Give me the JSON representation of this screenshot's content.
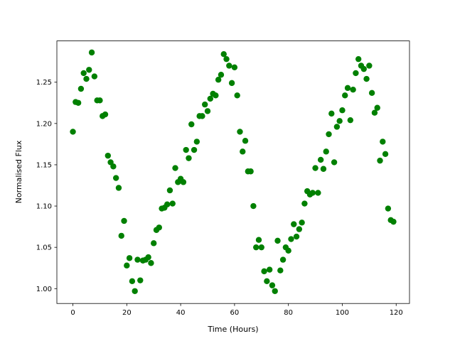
{
  "chart_data": {
    "type": "scatter",
    "xlabel": "Time (Hours)",
    "ylabel": "Normalised Flux",
    "x": [
      0,
      1,
      2,
      3,
      4,
      5,
      6,
      7,
      8,
      9,
      10,
      11,
      12,
      13,
      14,
      15,
      16,
      17,
      18,
      19,
      20,
      21,
      22,
      23,
      24,
      25,
      26,
      27,
      28,
      29,
      30,
      31,
      32,
      33,
      34,
      35,
      36,
      37,
      38,
      39,
      40,
      41,
      42,
      43,
      44,
      45,
      46,
      47,
      48,
      49,
      50,
      51,
      52,
      53,
      54,
      55,
      56,
      57,
      58,
      59,
      60,
      61,
      62,
      63,
      64,
      65,
      66,
      67,
      68,
      69,
      70,
      71,
      72,
      73,
      74,
      75,
      76,
      77,
      78,
      79,
      80,
      81,
      82,
      83,
      84,
      85,
      86,
      87,
      88,
      89,
      90,
      91,
      92,
      93,
      94,
      95,
      96,
      97,
      98,
      99,
      100,
      101,
      102,
      103,
      104,
      105,
      106,
      107,
      108,
      109,
      110,
      111,
      112,
      113,
      114,
      115,
      116,
      117,
      118,
      119
    ],
    "values": [
      1.19,
      1.226,
      1.225,
      1.242,
      1.261,
      1.254,
      1.265,
      1.286,
      1.257,
      1.228,
      1.228,
      1.209,
      1.211,
      1.161,
      1.153,
      1.148,
      1.134,
      1.122,
      1.064,
      1.082,
      1.028,
      1.037,
      1.009,
      0.997,
      1.035,
      1.01,
      1.034,
      1.035,
      1.038,
      1.031,
      1.055,
      1.071,
      1.074,
      1.097,
      1.098,
      1.102,
      1.119,
      1.103,
      1.146,
      1.129,
      1.133,
      1.129,
      1.168,
      1.158,
      1.199,
      1.168,
      1.178,
      1.209,
      1.209,
      1.223,
      1.215,
      1.23,
      1.236,
      1.234,
      1.253,
      1.259,
      1.284,
      1.278,
      1.27,
      1.249,
      1.268,
      1.234,
      1.19,
      1.166,
      1.179,
      1.142,
      1.142,
      1.1,
      1.05,
      1.059,
      1.05,
      1.021,
      1.009,
      1.023,
      1.004,
      0.997,
      1.058,
      1.022,
      1.035,
      1.05,
      1.046,
      1.06,
      1.078,
      1.063,
      1.072,
      1.08,
      1.103,
      1.118,
      1.114,
      1.116,
      1.146,
      1.116,
      1.156,
      1.145,
      1.166,
      1.187,
      1.212,
      1.153,
      1.196,
      1.203,
      1.216,
      1.234,
      1.243,
      1.204,
      1.241,
      1.261,
      1.278,
      1.27,
      1.266,
      1.254,
      1.27,
      1.237,
      1.213,
      1.219,
      1.155,
      1.178,
      1.163,
      1.097,
      1.083,
      1.081
    ],
    "color": "#008000",
    "xlim": [
      -5.95,
      124.95
    ],
    "xticks": [
      0,
      20,
      40,
      60,
      80,
      100,
      120
    ],
    "ylim": [
      0.982,
      1.3
    ],
    "yticks": [
      {
        "value": 1.0,
        "label": "1.00"
      },
      {
        "value": 1.05,
        "label": "1.05"
      },
      {
        "value": 1.1,
        "label": "1.10"
      },
      {
        "value": 1.15,
        "label": "1.15"
      },
      {
        "value": 1.2,
        "label": "1.20"
      },
      {
        "value": 1.25,
        "label": "1.25"
      }
    ],
    "grid": false
  }
}
